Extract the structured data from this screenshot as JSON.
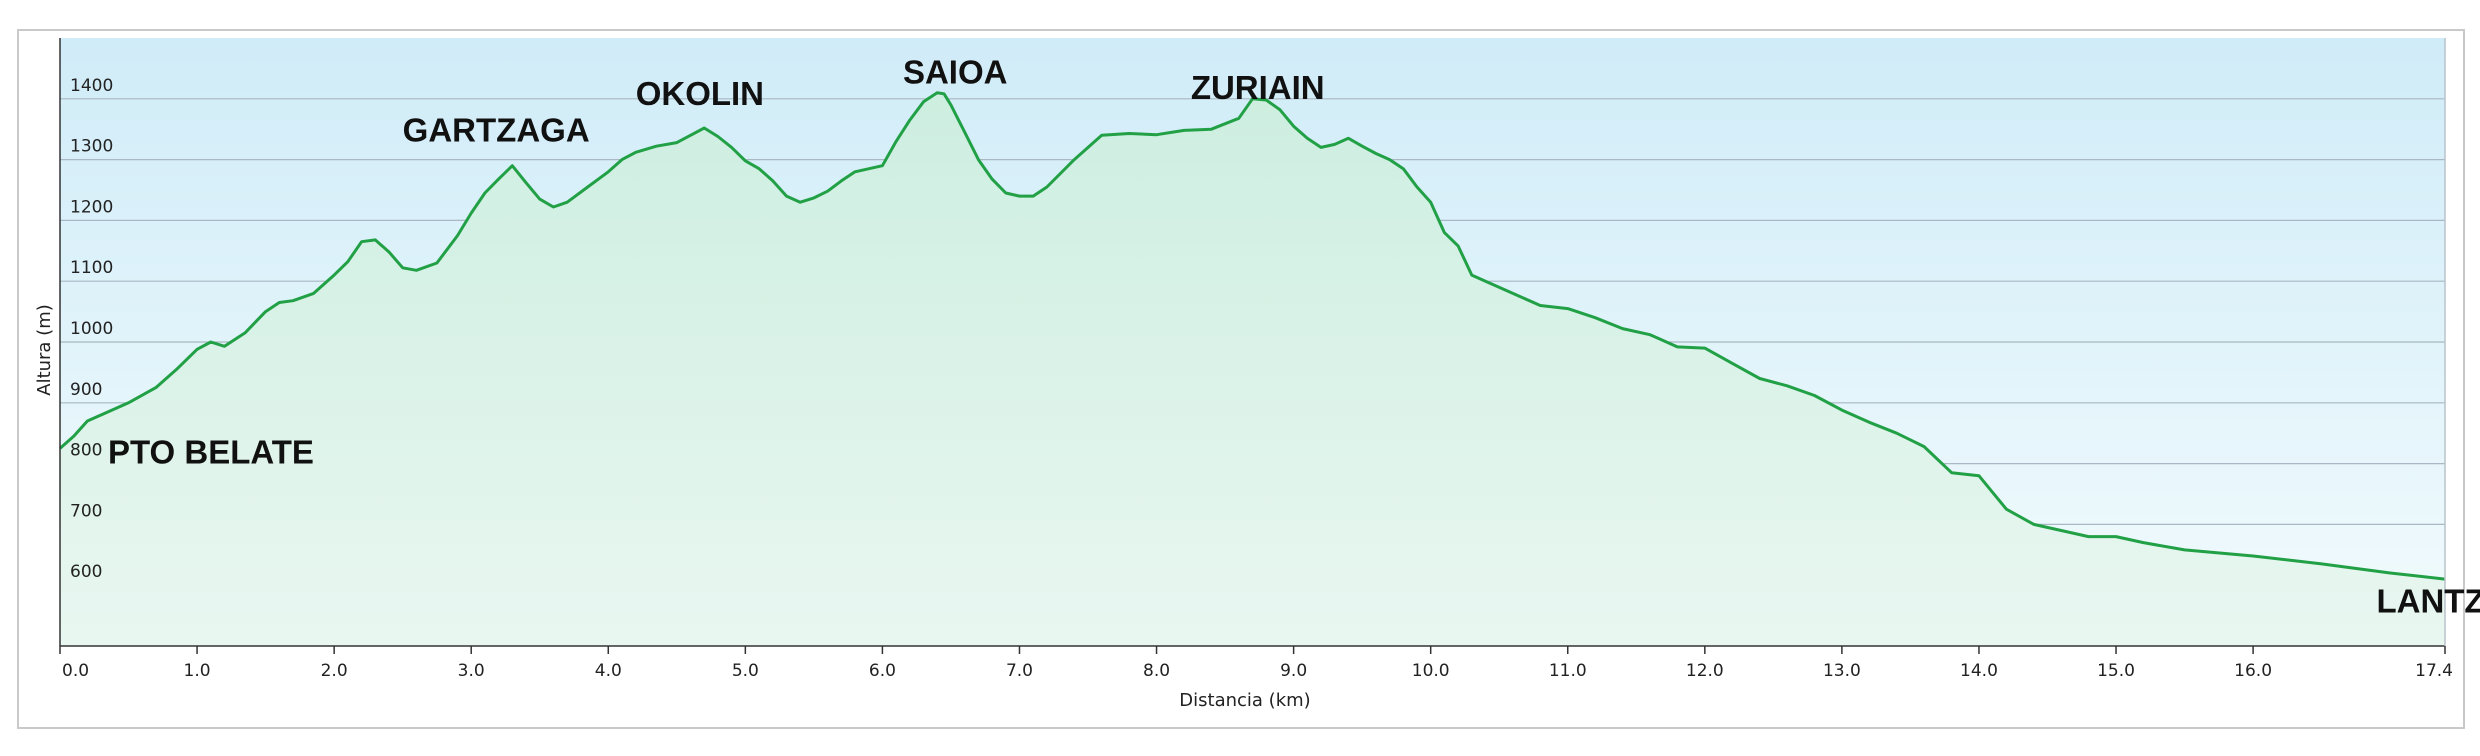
{
  "chart_data": {
    "type": "area",
    "title": "",
    "xlabel": "Distancia  (km)",
    "ylabel": "Altura (m)",
    "xlim": [
      0,
      17.4
    ],
    "ylim": [
      500,
      1500
    ],
    "grid": true,
    "x_ticks": [
      "0.0",
      "1.0",
      "2.0",
      "3.0",
      "4.0",
      "5.0",
      "6.0",
      "7.0",
      "8.0",
      "9.0",
      "10.0",
      "11.0",
      "12.0",
      "13.0",
      "14.0",
      "15.0",
      "16.0",
      "17.4"
    ],
    "y_ticks": [
      "600",
      "700",
      "800",
      "900",
      "1000",
      "1100",
      "1200",
      "1300",
      "1400"
    ],
    "colors": {
      "line": "#22a046",
      "fill_top": "#cdeee0",
      "fill_bottom": "#e9f7f1",
      "bg_top": "#d0ecf8",
      "bg_bottom": "#f2fbfd",
      "grid": "#a9b8c2"
    },
    "annotations": [
      {
        "text": "PTO BELATE",
        "x": 0.35,
        "y": 800
      },
      {
        "text": "GARTZAGA",
        "x": 2.5,
        "y": 1330
      },
      {
        "text": "OKOLIN",
        "x": 4.2,
        "y": 1390
      },
      {
        "text": "SAIOA",
        "x": 6.15,
        "y": 1425
      },
      {
        "text": "ZURIAIN",
        "x": 8.25,
        "y": 1400
      },
      {
        "text": "LANTZ",
        "x": 16.9,
        "y": 555
      }
    ],
    "series": [
      {
        "x": [
          0.0,
          0.1,
          0.2,
          0.35,
          0.5,
          0.7,
          0.85,
          1.0,
          1.1,
          1.2,
          1.35,
          1.5,
          1.6,
          1.7,
          1.85,
          2.0,
          2.1,
          2.2,
          2.3,
          2.4,
          2.5,
          2.6,
          2.75,
          2.9,
          3.0,
          3.1,
          3.2,
          3.3,
          3.4,
          3.5,
          3.6,
          3.7,
          3.85,
          4.0,
          4.1,
          4.2,
          4.35,
          4.5,
          4.6,
          4.7,
          4.8,
          4.9,
          5.0,
          5.1,
          5.2,
          5.3,
          5.4,
          5.5,
          5.6,
          5.7,
          5.8,
          6.0,
          6.1,
          6.2,
          6.3,
          6.4,
          6.45,
          6.5,
          6.6,
          6.7,
          6.8,
          6.9,
          7.0,
          7.1,
          7.2,
          7.4,
          7.6,
          7.8,
          8.0,
          8.2,
          8.4,
          8.6,
          8.7,
          8.8,
          8.9,
          9.0,
          9.1,
          9.2,
          9.3,
          9.4,
          9.5,
          9.6,
          9.7,
          9.8,
          9.9,
          10.0,
          10.1,
          10.2,
          10.3,
          10.4,
          10.6,
          10.8,
          11.0,
          11.2,
          11.4,
          11.6,
          11.8,
          12.0,
          12.2,
          12.4,
          12.6,
          12.8,
          13.0,
          13.2,
          13.4,
          13.6,
          13.8,
          14.0,
          14.2,
          14.4,
          14.6,
          14.8,
          15.0,
          15.2,
          15.5,
          16.0,
          16.5,
          17.0,
          17.4
        ],
        "y": [
          825,
          845,
          870,
          885,
          900,
          925,
          955,
          988,
          1000,
          993,
          1015,
          1050,
          1065,
          1068,
          1080,
          1110,
          1132,
          1165,
          1168,
          1148,
          1122,
          1118,
          1130,
          1175,
          1212,
          1245,
          1268,
          1290,
          1262,
          1235,
          1222,
          1230,
          1255,
          1280,
          1300,
          1312,
          1322,
          1328,
          1340,
          1352,
          1338,
          1320,
          1298,
          1285,
          1265,
          1240,
          1230,
          1237,
          1248,
          1265,
          1280,
          1290,
          1330,
          1365,
          1395,
          1410,
          1408,
          1390,
          1345,
          1300,
          1268,
          1245,
          1240,
          1240,
          1255,
          1300,
          1340,
          1343,
          1341,
          1348,
          1350,
          1368,
          1400,
          1398,
          1382,
          1355,
          1335,
          1320,
          1325,
          1335,
          1322,
          1310,
          1300,
          1285,
          1255,
          1230,
          1180,
          1158,
          1110,
          1100,
          1080,
          1060,
          1055,
          1040,
          1022,
          1012,
          992,
          990,
          965,
          940,
          928,
          912,
          888,
          868,
          850,
          828,
          785,
          780,
          725,
          700,
          690,
          680,
          680,
          670,
          658,
          648,
          635,
          620,
          610
        ]
      }
    ]
  }
}
